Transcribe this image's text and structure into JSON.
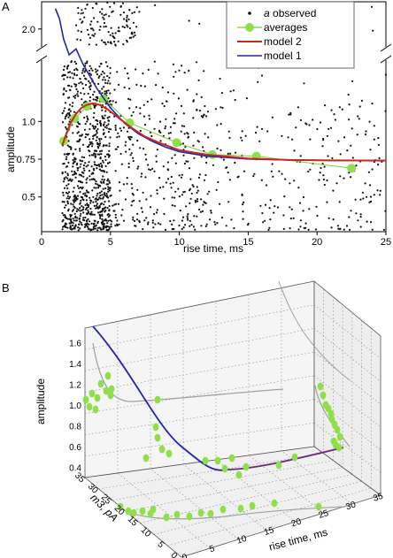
{
  "panels": {
    "a": "A",
    "b": "B"
  },
  "colors": {
    "observed": "#111111",
    "averages": "#8fdf4a",
    "averages_line": "#7ccc3a",
    "model2": "#c8281e",
    "model1": "#2323b0",
    "model3d_purple": "#6a2a7a",
    "projection": "#a0a0a0"
  },
  "chart_data": [
    {
      "type": "scatter",
      "panel": "A",
      "xlabel": "rise time, ms",
      "ylabel": "amplitude",
      "xlim": [
        0,
        25
      ],
      "ylim_lower": [
        0.27,
        1.4
      ],
      "ylim_upper": [
        1.75,
        2.4
      ],
      "axis_break": true,
      "x_ticks": [
        "0",
        "5",
        "10",
        "15",
        "20",
        "25"
      ],
      "y_ticks": [
        {
          "value": 0.5,
          "label": "0.5"
        },
        {
          "value": 0.75,
          "label": "0.75"
        },
        {
          "value": 1.0,
          "label": "1.0"
        },
        {
          "value": 2.0,
          "label": "2.0"
        }
      ],
      "legend": [
        {
          "key": "observed",
          "label": "a observed",
          "italic_prefix": "a",
          "rest": " observed"
        },
        {
          "key": "averages",
          "label": "averages"
        },
        {
          "key": "model2",
          "label": "model 2"
        },
        {
          "key": "model1",
          "label": "model 1"
        }
      ],
      "legend_position": "top-right",
      "averages": {
        "x": [
          1.6,
          2.4,
          3.3,
          4.5,
          6.4,
          9.8,
          12.4,
          15.6,
          22.5
        ],
        "y": [
          0.87,
          1.02,
          1.1,
          1.15,
          0.99,
          0.86,
          0.78,
          0.77,
          0.69
        ]
      },
      "model2": {
        "x": [
          1.5,
          1.8,
          2.1,
          2.5,
          2.9,
          3.3,
          3.7,
          4.2,
          4.8,
          5.5,
          6.5,
          7.5,
          8.5,
          10,
          12,
          15,
          18,
          21,
          25
        ],
        "y": [
          0.84,
          0.92,
          0.99,
          1.05,
          1.09,
          1.11,
          1.12,
          1.11,
          1.08,
          1.03,
          0.96,
          0.9,
          0.86,
          0.81,
          0.78,
          0.755,
          0.745,
          0.742,
          0.741
        ]
      },
      "model1": {
        "x": [
          1.0,
          1.3,
          1.6,
          2.0,
          2.5,
          3.0,
          3.5,
          4.0,
          5.0,
          6.0,
          7.0,
          8.0,
          9.0,
          10,
          12,
          15,
          18,
          21,
          25
        ],
        "y": [
          2.3,
          2.15,
          1.85,
          1.62,
          1.48,
          1.38,
          1.3,
          1.22,
          1.09,
          0.99,
          0.92,
          0.87,
          0.83,
          0.8,
          0.77,
          0.751,
          0.745,
          0.742,
          0.741
        ]
      },
      "observed": {
        "n_points": 1400,
        "x_range": [
          1.5,
          25
        ],
        "y_range": [
          0.28,
          1.4
        ],
        "upper_cluster_x_range": [
          2.5,
          7
        ],
        "upper_cluster_y_range": [
          1.75,
          2.4
        ]
      }
    },
    {
      "type": "scatter3d",
      "panel": "B",
      "zlabel": "amplitude",
      "xlabel": "rise time, ms",
      "ylabel": "m3, pA",
      "z_ticks": [
        "0.4",
        "0.6",
        "0.8",
        "1.0",
        "1.2",
        "1.4",
        "1.6"
      ],
      "x_ticks": [
        "0",
        "5",
        "10",
        "15",
        "20",
        "25",
        "30",
        "35"
      ],
      "y_ticks": [
        "35",
        "30",
        "25",
        "20",
        "15",
        "10",
        "5",
        "0"
      ],
      "grid": true
    }
  ]
}
